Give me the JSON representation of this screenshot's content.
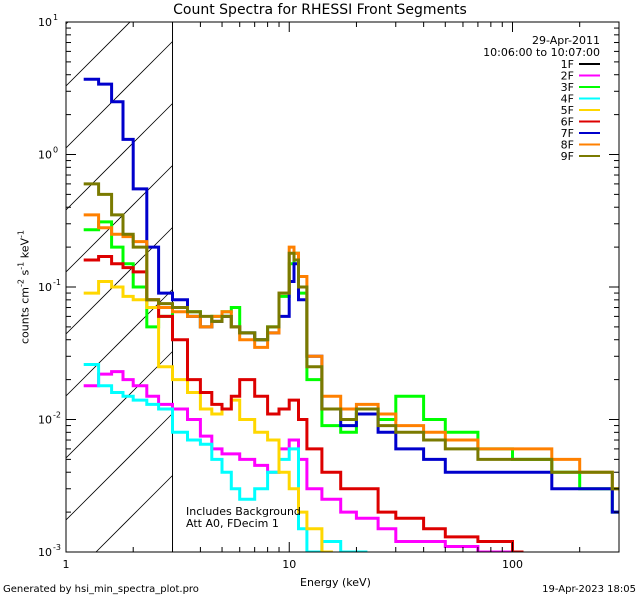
{
  "chart_data": {
    "type": "line",
    "title": "Count Spectra for RHESSI Front Segments",
    "xlabel": "Energy (keV)",
    "ylabel_parts": [
      "counts cm",
      "-2",
      " s",
      "-1",
      " keV",
      "-1"
    ],
    "xscale": "log",
    "yscale": "log",
    "xlim": [
      1,
      300
    ],
    "ylim": [
      0.001,
      10
    ],
    "x_ticks": [
      {
        "v": 1,
        "label": "1"
      },
      {
        "v": 10,
        "label": "10"
      },
      {
        "v": 100,
        "label": "100"
      }
    ],
    "y_ticks": [
      {
        "v": 0.001,
        "base": "10",
        "exp": "-3"
      },
      {
        "v": 0.01,
        "base": "10",
        "exp": "-2"
      },
      {
        "v": 0.1,
        "base": "10",
        "exp": "-1"
      },
      {
        "v": 1,
        "base": "10",
        "exp": "0"
      },
      {
        "v": 10,
        "base": "10",
        "exp": "1"
      }
    ],
    "date": "29-Apr-2011",
    "time_range": "10:06:00 to 10:07:00",
    "shaded_region": {
      "x": [
        1,
        3
      ],
      "pattern": "diagonal-hatch"
    },
    "annotations": [
      "Includes Background",
      "Att A0, FDecim 1"
    ],
    "legend_position": "top-right",
    "series": [
      {
        "name": "1F",
        "color": "#000000",
        "x": [],
        "y": []
      },
      {
        "name": "2F",
        "color": "#ff00ff",
        "x": [
          1.2,
          1.4,
          1.6,
          1.8,
          2.0,
          2.3,
          2.6,
          3.0,
          3.5,
          4.0,
          4.5,
          5.0,
          6.0,
          7.0,
          8.0,
          9.0,
          10.0,
          11.0,
          12.0,
          14.0,
          17.0,
          20.0,
          25.0,
          30.0,
          40.0,
          50.0,
          70.0,
          100.0
        ],
        "y": [
          0.018,
          0.022,
          0.023,
          0.02,
          0.018,
          0.015,
          0.013,
          0.012,
          0.01,
          0.0075,
          0.006,
          0.0055,
          0.005,
          0.0045,
          0.004,
          0.006,
          0.007,
          0.005,
          0.003,
          0.0025,
          0.002,
          0.0018,
          0.0015,
          0.0012,
          0.0012,
          0.0011,
          0.001,
          0.001
        ]
      },
      {
        "name": "3F",
        "color": "#00ff00",
        "x": [
          1.2,
          1.4,
          1.6,
          1.8,
          2.0,
          2.3,
          2.6,
          3.0,
          3.5,
          4.0,
          4.5,
          5.0,
          5.5,
          6.0,
          7.0,
          8.0,
          9.0,
          10.0,
          10.5,
          11.0,
          12.0,
          14.0,
          17.0,
          20.0,
          25.0,
          30.0,
          40.0,
          50.0,
          70.0,
          100.0,
          150.0,
          200.0,
          280.0
        ],
        "y": [
          0.27,
          0.31,
          0.2,
          0.15,
          0.1,
          0.05,
          0.06,
          0.07,
          0.065,
          0.05,
          0.06,
          0.065,
          0.07,
          0.045,
          0.04,
          0.05,
          0.085,
          0.15,
          0.18,
          0.09,
          0.02,
          0.009,
          0.008,
          0.012,
          0.01,
          0.015,
          0.01,
          0.008,
          0.006,
          0.005,
          0.004,
          0.003,
          0.002
        ]
      },
      {
        "name": "4F",
        "color": "#00ffff",
        "x": [
          1.2,
          1.4,
          1.6,
          1.8,
          2.0,
          2.3,
          2.6,
          3.0,
          3.5,
          4.0,
          4.5,
          5.0,
          5.5,
          6.0,
          7.0,
          8.0,
          9.0,
          10.0,
          11.0,
          12.0,
          14.0,
          17.0,
          20.0
        ],
        "y": [
          0.026,
          0.018,
          0.016,
          0.015,
          0.014,
          0.013,
          0.012,
          0.008,
          0.007,
          0.0065,
          0.005,
          0.004,
          0.003,
          0.0025,
          0.003,
          0.004,
          0.005,
          0.006,
          0.0015,
          0.001,
          0.0012,
          0.001,
          0.001
        ]
      },
      {
        "name": "5F",
        "color": "#ffd700",
        "x": [
          1.2,
          1.4,
          1.6,
          1.8,
          2.0,
          2.3,
          2.6,
          3.0,
          3.5,
          4.0,
          4.5,
          5.0,
          5.5,
          6.0,
          7.0,
          8.0,
          9.0,
          10.0,
          11.0,
          12.0,
          14.0
        ],
        "y": [
          0.09,
          0.11,
          0.1,
          0.085,
          0.08,
          0.07,
          0.025,
          0.02,
          0.016,
          0.012,
          0.011,
          0.012,
          0.014,
          0.01,
          0.008,
          0.007,
          0.004,
          0.003,
          0.002,
          0.0015,
          0.001
        ]
      },
      {
        "name": "6F",
        "color": "#dd0000",
        "x": [
          1.2,
          1.4,
          1.6,
          1.8,
          2.0,
          2.3,
          2.6,
          3.0,
          3.5,
          4.0,
          4.5,
          5.0,
          5.5,
          6.0,
          7.0,
          8.0,
          9.0,
          10.0,
          11.0,
          12.0,
          14.0,
          17.0,
          20.0,
          25.0,
          30.0,
          40.0,
          50.0,
          70.0,
          100.0
        ],
        "y": [
          0.16,
          0.17,
          0.15,
          0.14,
          0.13,
          0.08,
          0.06,
          0.04,
          0.02,
          0.016,
          0.013,
          0.012,
          0.015,
          0.02,
          0.015,
          0.011,
          0.012,
          0.014,
          0.01,
          0.006,
          0.004,
          0.003,
          0.003,
          0.002,
          0.0018,
          0.0015,
          0.0013,
          0.0012,
          0.001
        ]
      },
      {
        "name": "7F",
        "color": "#0000cc",
        "x": [
          1.2,
          1.4,
          1.6,
          1.8,
          2.0,
          2.3,
          2.6,
          3.0,
          3.5,
          4.0,
          4.5,
          5.0,
          5.5,
          6.0,
          7.0,
          8.0,
          9.0,
          10.0,
          10.5,
          11.0,
          12.0,
          14.0,
          17.0,
          20.0,
          25.0,
          30.0,
          40.0,
          50.0,
          70.0,
          100.0,
          150.0,
          200.0,
          280.0
        ],
        "y": [
          3.7,
          3.4,
          2.5,
          1.3,
          0.55,
          0.2,
          0.09,
          0.08,
          0.06,
          0.05,
          0.055,
          0.06,
          0.05,
          0.045,
          0.04,
          0.045,
          0.06,
          0.11,
          0.15,
          0.08,
          0.03,
          0.012,
          0.009,
          0.011,
          0.008,
          0.006,
          0.005,
          0.004,
          0.004,
          0.004,
          0.003,
          0.003,
          0.002
        ]
      },
      {
        "name": "8F",
        "color": "#ff8000",
        "x": [
          1.2,
          1.4,
          1.6,
          1.8,
          2.0,
          2.3,
          2.6,
          3.0,
          3.5,
          4.0,
          4.5,
          5.0,
          5.5,
          6.0,
          7.0,
          8.0,
          9.0,
          10.0,
          10.5,
          11.0,
          12.0,
          14.0,
          17.0,
          20.0,
          25.0,
          30.0,
          40.0,
          50.0,
          70.0,
          100.0,
          150.0,
          200.0,
          280.0
        ],
        "y": [
          0.35,
          0.28,
          0.25,
          0.24,
          0.22,
          0.08,
          0.07,
          0.065,
          0.06,
          0.05,
          0.06,
          0.065,
          0.05,
          0.04,
          0.035,
          0.045,
          0.09,
          0.2,
          0.18,
          0.12,
          0.03,
          0.015,
          0.012,
          0.013,
          0.011,
          0.009,
          0.008,
          0.007,
          0.006,
          0.006,
          0.005,
          0.004,
          0.003
        ]
      },
      {
        "name": "9F",
        "color": "#7a7a00",
        "x": [
          1.2,
          1.4,
          1.6,
          1.8,
          2.0,
          2.3,
          2.6,
          3.0,
          3.5,
          4.0,
          4.5,
          5.0,
          5.5,
          6.0,
          7.0,
          8.0,
          9.0,
          10.0,
          10.5,
          11.0,
          12.0,
          14.0,
          17.0,
          20.0,
          25.0,
          30.0,
          40.0,
          50.0,
          70.0,
          100.0,
          150.0,
          200.0,
          280.0
        ],
        "y": [
          0.6,
          0.5,
          0.35,
          0.25,
          0.2,
          0.08,
          0.075,
          0.07,
          0.065,
          0.06,
          0.055,
          0.06,
          0.05,
          0.045,
          0.04,
          0.05,
          0.09,
          0.18,
          0.16,
          0.1,
          0.025,
          0.012,
          0.01,
          0.012,
          0.009,
          0.008,
          0.007,
          0.006,
          0.005,
          0.005,
          0.004,
          0.004,
          0.003
        ]
      }
    ]
  },
  "footer": {
    "left": "Generated by hsi_min_spectra_plot.pro",
    "right": "19-Apr-2023 18:05"
  }
}
